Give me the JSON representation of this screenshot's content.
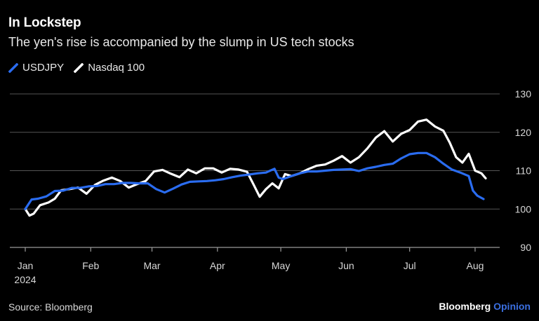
{
  "header": {
    "title": "In Lockstep",
    "subtitle": "The yen's rise is accompanied by the slump in US tech stocks"
  },
  "footer": {
    "source": "Source: Bloomberg",
    "brand": "Bloomberg",
    "brand_suffix": "Opinion"
  },
  "colors": {
    "background": "#000000",
    "usdjpy": "#2a6cf0",
    "nasdaq": "#ffffff",
    "grid": "#555555"
  },
  "chart_data": {
    "type": "line",
    "title": "In Lockstep",
    "subtitle": "The yen's rise is accompanied by the slump in US tech stocks",
    "xlabel": "",
    "ylabel": "",
    "ylim": [
      90,
      130
    ],
    "yticks": [
      90,
      100,
      110,
      120,
      130
    ],
    "xlim": [
      1,
      219
    ],
    "xticks": [
      {
        "day": 1,
        "label": "Jan",
        "sublabel": "2024"
      },
      {
        "day": 32,
        "label": "Feb",
        "sublabel": ""
      },
      {
        "day": 61,
        "label": "Mar",
        "sublabel": ""
      },
      {
        "day": 92,
        "label": "Apr",
        "sublabel": ""
      },
      {
        "day": 122,
        "label": "May",
        "sublabel": ""
      },
      {
        "day": 153,
        "label": "Jun",
        "sublabel": ""
      },
      {
        "day": 183,
        "label": "Jul",
        "sublabel": ""
      },
      {
        "day": 214,
        "label": "Aug",
        "sublabel": ""
      }
    ],
    "legend": "top-left",
    "grid": true,
    "series": [
      {
        "name": "USDJPY",
        "color": "#2a6cf0",
        "x": [
          1,
          4,
          7,
          11,
          15,
          19,
          23,
          27,
          31,
          35,
          39,
          43,
          47,
          51,
          55,
          59,
          63,
          67,
          71,
          75,
          79,
          83,
          87,
          91,
          95,
          99,
          103,
          107,
          111,
          115,
          119,
          121,
          123,
          127,
          131,
          135,
          139,
          143,
          147,
          151,
          155,
          159,
          163,
          167,
          171,
          175,
          179,
          183,
          187,
          191,
          195,
          199,
          203,
          207,
          211,
          213,
          215,
          218
        ],
        "values": [
          100,
          102.5,
          102.7,
          103.3,
          104.7,
          104.8,
          105.5,
          105.5,
          105.9,
          106,
          106.5,
          106.5,
          106.8,
          106.8,
          106.7,
          106.7,
          105.2,
          104.3,
          105.3,
          106.4,
          107.1,
          107.2,
          107.3,
          107.5,
          107.8,
          108.3,
          108.7,
          109,
          109.3,
          109.5,
          110.5,
          108.2,
          107.8,
          108.6,
          109.3,
          109.8,
          109.8,
          110,
          110.2,
          110.3,
          110.4,
          109.9,
          110.6,
          111,
          111.5,
          111.8,
          113.2,
          114.3,
          114.6,
          114.6,
          113.5,
          111.8,
          110.3,
          109.5,
          108.6,
          104.8,
          103.5,
          102.6
        ]
      },
      {
        "name": "Nasdaq 100",
        "color": "#ffffff",
        "x": [
          1,
          3,
          5,
          8,
          12,
          15,
          18,
          22,
          26,
          30,
          34,
          38,
          42,
          46,
          50,
          54,
          58,
          62,
          66,
          70,
          74,
          78,
          82,
          86,
          90,
          94,
          98,
          102,
          106,
          109,
          112,
          115,
          118,
          121,
          124,
          127,
          131,
          135,
          139,
          143,
          147,
          151,
          155,
          159,
          163,
          167,
          171,
          175,
          179,
          183,
          187,
          191,
          195,
          199,
          202,
          205,
          208,
          211,
          214,
          217,
          219
        ],
        "values": [
          100,
          98.3,
          98.8,
          101,
          101.7,
          102.7,
          104.9,
          105.2,
          105.6,
          104,
          106.3,
          107.4,
          108.2,
          107.3,
          105.6,
          106.5,
          107.3,
          109.8,
          110.2,
          109.2,
          108.3,
          110.3,
          109.3,
          110.6,
          110.6,
          109.5,
          110.5,
          110.3,
          109.7,
          106.5,
          103.2,
          105.2,
          106.7,
          105.4,
          109.1,
          108.6,
          109.3,
          110.4,
          111.3,
          111.6,
          112.6,
          113.8,
          112.1,
          113.5,
          115.8,
          118.6,
          120.3,
          117.6,
          119.6,
          120.6,
          122.8,
          123.3,
          121.5,
          120.4,
          117.3,
          113.5,
          112.1,
          114.4,
          110,
          109.3,
          108
        ]
      }
    ]
  }
}
